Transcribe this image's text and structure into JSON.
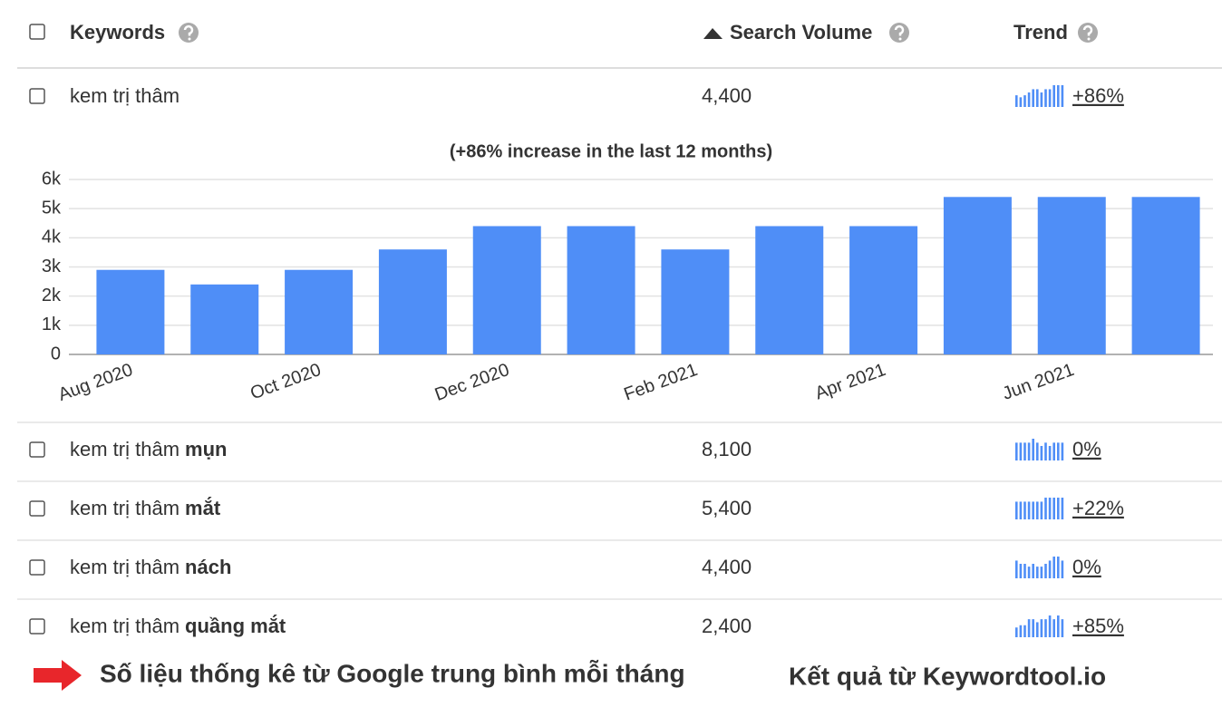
{
  "header": {
    "keywords": "Keywords",
    "search_volume": "Search Volume",
    "trend": "Trend"
  },
  "rows": [
    {
      "keyword": "kem trị thâm",
      "volume": "4,400",
      "trend": "+86%",
      "trend_color": "#3b8b3b",
      "sparkline": [
        2900,
        2400,
        2900,
        3600,
        4400,
        4400,
        3600,
        4400,
        4400,
        5400,
        5400,
        5400
      ]
    },
    {
      "keyword": "kem trị thâm",
      "keyword_bold": "mụn",
      "volume": "8,100",
      "trend": "0%",
      "trend_color": "#aaaaaa",
      "sparkline": [
        8100,
        8100,
        8100,
        8100,
        9900,
        8100,
        6600,
        8100,
        6600,
        8100,
        8100,
        8100
      ]
    },
    {
      "keyword": "kem trị thâm",
      "keyword_bold": "mắt",
      "volume": "5,400",
      "trend": "+22%",
      "trend_color": "#3b8b3b",
      "sparkline": [
        4400,
        4400,
        4400,
        4400,
        4400,
        4400,
        4400,
        5400,
        5400,
        5400,
        5400,
        5400
      ]
    },
    {
      "keyword": "kem trị thâm",
      "keyword_bold": "nách",
      "volume": "4,400",
      "trend": "0%",
      "trend_color": "#aaaaaa",
      "sparkline": [
        4400,
        3600,
        3600,
        2900,
        3600,
        2900,
        2900,
        3600,
        4400,
        5400,
        5400,
        4400
      ]
    },
    {
      "keyword": "kem trị thâm",
      "keyword_bold": "quầng mắt",
      "volume": "2,400",
      "trend": "+85%",
      "trend_color": "#3b8b3b",
      "sparkline": [
        1300,
        1600,
        1600,
        2400,
        2400,
        2000,
        2400,
        2400,
        2900,
        2400,
        2900,
        2400
      ]
    }
  ],
  "chart_data": {
    "type": "bar",
    "title": "(+86% increase in the last 12 months)",
    "categories": [
      "Aug 2020",
      null,
      "Oct 2020",
      null,
      "Dec 2020",
      null,
      "Feb 2021",
      null,
      "Apr 2021",
      null,
      "Jun 2021",
      null
    ],
    "values": [
      2900,
      2400,
      2900,
      3600,
      4400,
      4400,
      3600,
      4400,
      4400,
      5400,
      5400,
      5400
    ],
    "color": "#4f8ef7",
    "grid": true,
    "ylim": [
      0,
      6000
    ],
    "yticks": [
      0,
      {
        "value": 1000,
        "label": "1k"
      },
      {
        "value": 2000,
        "label": "2k"
      },
      {
        "value": 3000,
        "label": "3k"
      },
      {
        "value": 4000,
        "label": "4k"
      },
      {
        "value": 5000,
        "label": "5k"
      },
      {
        "value": 6000,
        "label": "6k"
      }
    ]
  },
  "footer": {
    "note": "Số liệu thống kê từ Google trung bình mỗi tháng",
    "source": "Kết quả từ Keywordtool.io"
  }
}
